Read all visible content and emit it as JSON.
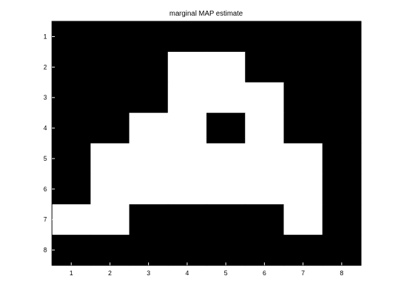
{
  "chart_data": {
    "type": "heatmap",
    "title": "marginal MAP estimate",
    "xlabel": "",
    "ylabel": "",
    "x_ticks": [
      "1",
      "2",
      "3",
      "4",
      "5",
      "6",
      "7",
      "8"
    ],
    "y_ticks": [
      "1",
      "2",
      "3",
      "4",
      "5",
      "6",
      "7",
      "8"
    ],
    "colormap": {
      "0": "#000000",
      "1": "#ffffff"
    },
    "grid": false,
    "values": [
      [
        0,
        0,
        0,
        0,
        0,
        0,
        0,
        0
      ],
      [
        0,
        0,
        0,
        1,
        1,
        0,
        0,
        0
      ],
      [
        0,
        0,
        0,
        1,
        1,
        1,
        0,
        0
      ],
      [
        0,
        0,
        1,
        1,
        0,
        1,
        0,
        0
      ],
      [
        0,
        1,
        1,
        1,
        1,
        1,
        1,
        0
      ],
      [
        0,
        1,
        1,
        1,
        1,
        1,
        1,
        0
      ],
      [
        1,
        1,
        0,
        0,
        0,
        0,
        1,
        0
      ],
      [
        0,
        0,
        0,
        0,
        0,
        0,
        0,
        0
      ]
    ]
  }
}
